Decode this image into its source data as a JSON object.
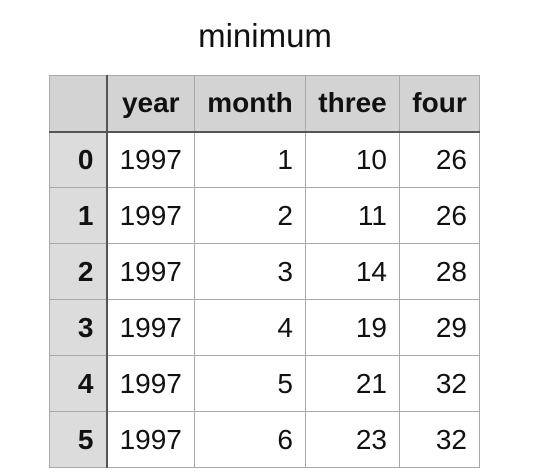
{
  "title": "minimum",
  "table": {
    "columns": [
      "year",
      "month",
      "three",
      "four"
    ],
    "index": [
      "0",
      "1",
      "2",
      "3",
      "4",
      "5"
    ],
    "rows": [
      [
        "1997",
        "1",
        "10",
        "26"
      ],
      [
        "1997",
        "2",
        "11",
        "26"
      ],
      [
        "1997",
        "3",
        "14",
        "28"
      ],
      [
        "1997",
        "4",
        "19",
        "29"
      ],
      [
        "1997",
        "5",
        "21",
        "32"
      ],
      [
        "1997",
        "6",
        "23",
        "32"
      ]
    ]
  },
  "colors": {
    "header_bg": "#d3d3d3",
    "index_bg": "#dcdcdc",
    "grid_line": "#a9a9a9",
    "separator": "#555555"
  }
}
